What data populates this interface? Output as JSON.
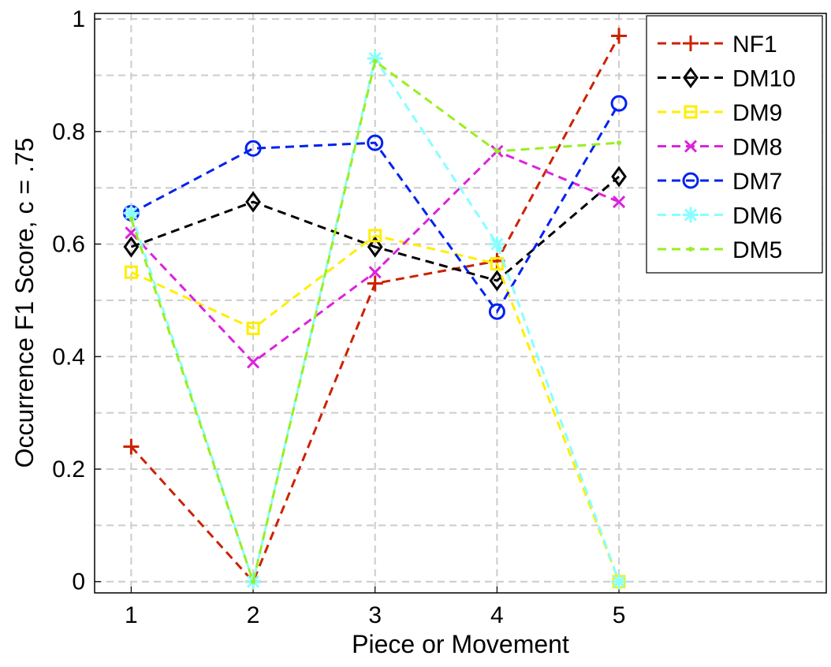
{
  "chart_data": {
    "type": "line",
    "xlabel": "Piece or Movement",
    "ylabel": "Occurrence F1 Score, c = .75",
    "x": [
      1,
      2,
      3,
      4,
      5
    ],
    "xticks": [
      "1",
      "2",
      "3",
      "4",
      "5"
    ],
    "xlim": [
      0.7,
      6.7
    ],
    "ylim": [
      -0.02,
      1.01
    ],
    "yticks": [
      "0",
      "0.2",
      "0.4",
      "0.6",
      "0.8",
      "1"
    ],
    "grid": true,
    "legend_position": "top-right",
    "series": [
      {
        "name": "NF1",
        "color": "#cc2200",
        "marker": "plus",
        "values": [
          0.24,
          0.0,
          0.53,
          0.57,
          0.97
        ]
      },
      {
        "name": "DM10",
        "color": "#000000",
        "marker": "diamond",
        "values": [
          0.595,
          0.675,
          0.595,
          0.535,
          0.72
        ]
      },
      {
        "name": "DM9",
        "color": "#ffee00",
        "marker": "square",
        "values": [
          0.55,
          0.45,
          0.615,
          0.565,
          0.0
        ]
      },
      {
        "name": "DM8",
        "color": "#dd22dd",
        "marker": "x",
        "values": [
          0.62,
          0.39,
          0.55,
          0.765,
          0.675
        ]
      },
      {
        "name": "DM7",
        "color": "#0022ee",
        "marker": "circle",
        "values": [
          0.655,
          0.77,
          0.78,
          0.48,
          0.85
        ]
      },
      {
        "name": "DM6",
        "color": "#88ffff",
        "marker": "star",
        "values": [
          0.655,
          0.0,
          0.93,
          0.6,
          0.0
        ]
      },
      {
        "name": "DM5",
        "color": "#99ee22",
        "marker": "dot",
        "values": [
          0.645,
          0.0,
          0.925,
          0.765,
          0.78
        ]
      }
    ]
  }
}
